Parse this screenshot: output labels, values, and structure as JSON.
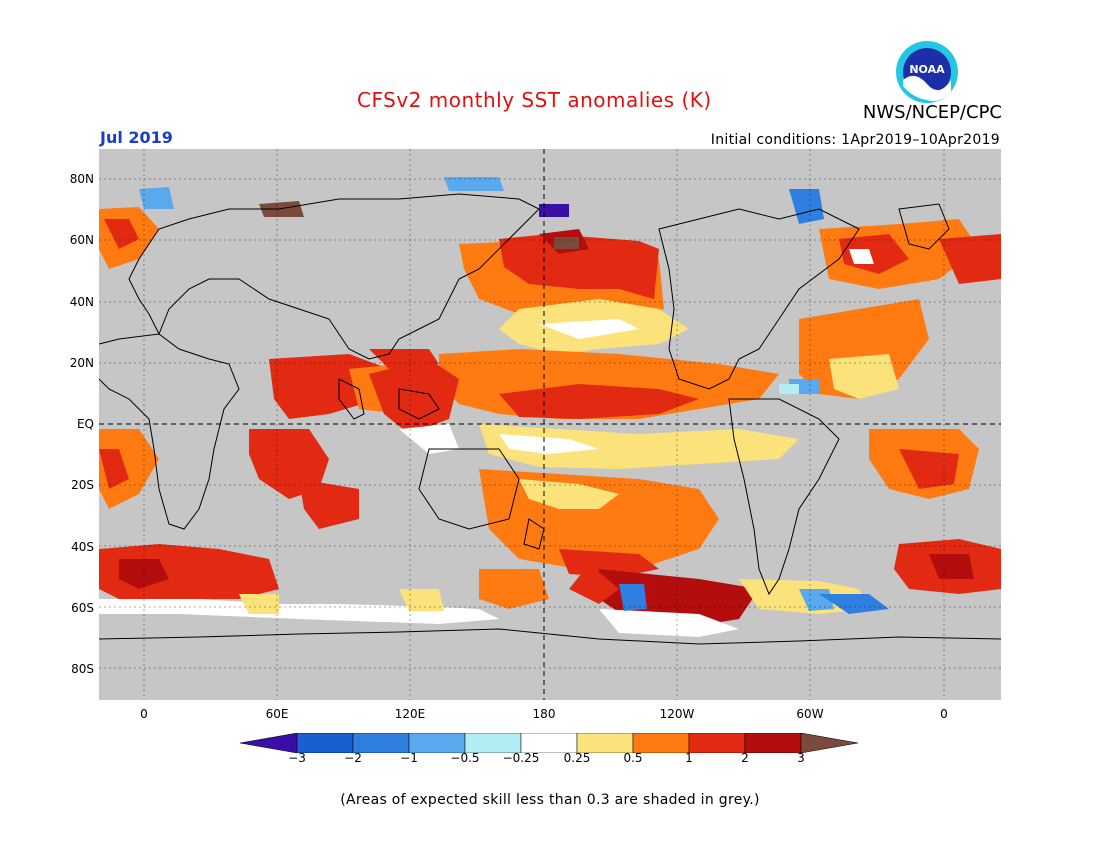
{
  "header": {
    "title": "CFSv2 monthly SST anomalies (K)",
    "period": "Jul 2019",
    "initial_conditions": "Initial conditions: 1Apr2019–10Apr2019",
    "agency": "NWS/NCEP/CPC",
    "logo_text": "NOAA"
  },
  "axes": {
    "lat_labels": [
      "80N",
      "60N",
      "40N",
      "20N",
      "EQ",
      "20S",
      "40S",
      "60S",
      "80S"
    ],
    "lon_labels": [
      "0",
      "60E",
      "120E",
      "180",
      "120W",
      "60W",
      "0"
    ]
  },
  "colorbar": {
    "labels": [
      "−3",
      "−2",
      "−1",
      "−0.5",
      "−0.25",
      "0.25",
      "0.5",
      "1",
      "2",
      "3"
    ],
    "colors": [
      "#3a0fa8",
      "#1a5fd0",
      "#2f7fe0",
      "#5aa8ee",
      "#b3ecf2",
      "#ffffff",
      "#fbe27a",
      "#ff7b12",
      "#e22a12",
      "#b30d0d",
      "#7a4a3c"
    ]
  },
  "footnote": "(Areas of expected skill less than 0.3 are shaded in grey.)",
  "colors": {
    "skill_mask_grey": "#c6c6c6",
    "title_red": "#e01010",
    "period_blue": "#1a3fc7"
  }
}
